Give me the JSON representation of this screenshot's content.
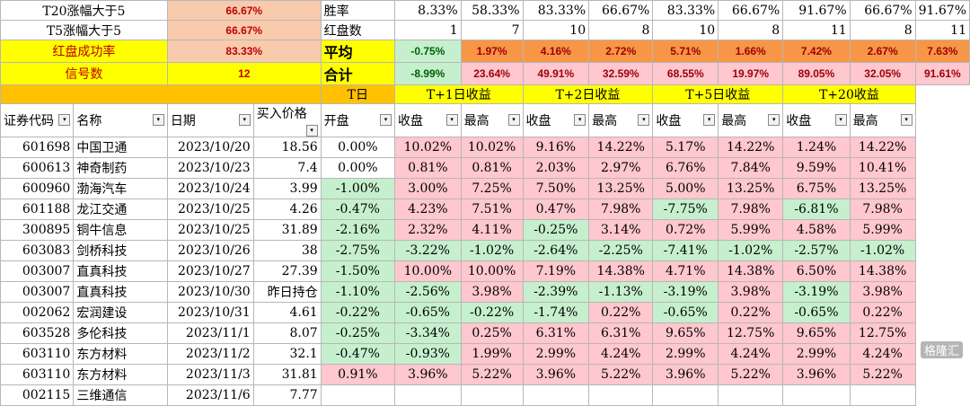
{
  "summary": {
    "row1": {
      "label": "T20涨幅大于5",
      "value": "66.67%",
      "metric": "胜率",
      "vals": [
        "8.33%",
        "58.33%",
        "83.33%",
        "66.67%",
        "83.33%",
        "66.67%",
        "91.67%",
        "66.67%",
        "91.67%"
      ]
    },
    "row2": {
      "label": "T5涨幅大于5",
      "value": "66.67%",
      "metric": "红盘数",
      "vals": [
        "1",
        "7",
        "10",
        "8",
        "10",
        "8",
        "11",
        "8",
        "11"
      ]
    },
    "row3": {
      "label": "红盘成功率",
      "value": "83.33%",
      "metric": "平均",
      "vals": [
        "-0.75%",
        "1.97%",
        "4.16%",
        "2.72%",
        "5.71%",
        "1.66%",
        "7.42%",
        "2.67%",
        "7.63%"
      ]
    },
    "row4": {
      "label": "信号数",
      "value": "12",
      "metric": "合计",
      "vals": [
        "-8.99%",
        "23.64%",
        "49.91%",
        "32.59%",
        "68.55%",
        "19.97%",
        "89.05%",
        "32.05%",
        "91.61%"
      ]
    }
  },
  "sections": {
    "t": "T日",
    "t1": "T+1日收益",
    "t2": "T+2日收益",
    "t5": "T+5日收益",
    "t20": "T+20收益"
  },
  "headers": [
    "证券代码",
    "名称",
    "日期",
    "买入价格",
    "开盘",
    "收盘",
    "最高",
    "收盘",
    "最高",
    "收盘",
    "最高",
    "收盘",
    "最高"
  ],
  "rows": [
    [
      "601698",
      "中国卫通",
      "2023/10/20",
      "18.56",
      "0.00%",
      "10.02%",
      "10.02%",
      "9.16%",
      "14.22%",
      "5.17%",
      "14.22%",
      "1.24%",
      "14.22%"
    ],
    [
      "600613",
      "神奇制药",
      "2023/10/23",
      "7.4",
      "0.00%",
      "0.81%",
      "0.81%",
      "2.03%",
      "2.97%",
      "6.76%",
      "7.84%",
      "9.59%",
      "10.41%"
    ],
    [
      "600960",
      "渤海汽车",
      "2023/10/24",
      "3.99",
      "-1.00%",
      "3.00%",
      "7.25%",
      "7.50%",
      "13.25%",
      "5.00%",
      "13.25%",
      "6.75%",
      "13.25%"
    ],
    [
      "601188",
      "龙江交通",
      "2023/10/25",
      "4.26",
      "-0.47%",
      "4.23%",
      "7.51%",
      "0.47%",
      "7.98%",
      "-7.75%",
      "7.98%",
      "-6.81%",
      "7.98%"
    ],
    [
      "300895",
      "铜牛信息",
      "2023/10/25",
      "31.89",
      "-2.16%",
      "2.32%",
      "4.11%",
      "-0.25%",
      "3.14%",
      "0.72%",
      "5.99%",
      "4.58%",
      "5.99%"
    ],
    [
      "603083",
      "剑桥科技",
      "2023/10/26",
      "38",
      "-2.75%",
      "-3.22%",
      "-1.02%",
      "-2.64%",
      "-2.25%",
      "-7.41%",
      "-1.02%",
      "-2.57%",
      "-1.02%"
    ],
    [
      "003007",
      "直真科技",
      "2023/10/27",
      "27.39",
      "-1.50%",
      "10.00%",
      "10.00%",
      "7.19%",
      "14.38%",
      "4.71%",
      "14.38%",
      "6.50%",
      "14.38%"
    ],
    [
      "003007",
      "直真科技",
      "2023/10/30",
      "昨日持仓",
      "-1.10%",
      "-2.56%",
      "3.98%",
      "-2.39%",
      "-1.13%",
      "-3.19%",
      "3.98%",
      "-3.19%",
      "3.98%"
    ],
    [
      "002062",
      "宏润建设",
      "2023/10/31",
      "4.61",
      "-0.22%",
      "-0.65%",
      "-0.22%",
      "-1.74%",
      "0.22%",
      "-0.65%",
      "0.22%",
      "-0.65%",
      "0.22%"
    ],
    [
      "603528",
      "多伦科技",
      "2023/11/1",
      "8.07",
      "-0.25%",
      "-3.34%",
      "0.25%",
      "6.31%",
      "6.31%",
      "9.65%",
      "12.75%",
      "9.65%",
      "12.75%"
    ],
    [
      "603110",
      "东方材料",
      "2023/11/2",
      "32.1",
      "-0.47%",
      "-0.93%",
      "1.99%",
      "2.99%",
      "4.24%",
      "2.99%",
      "4.24%",
      "2.99%",
      "4.24%"
    ],
    [
      "603110",
      "东方材料",
      "2023/11/3",
      "31.81",
      "0.91%",
      "3.96%",
      "5.22%",
      "3.96%",
      "5.22%",
      "3.96%",
      "5.22%",
      "3.96%",
      "5.22%"
    ],
    [
      "002115",
      "三维通信",
      "2023/11/6",
      "7.77",
      "",
      "",
      "",
      "",
      "",
      "",
      "",
      "",
      ""
    ]
  ],
  "watermark": "格隆汇",
  "colors": {
    "positive_bg": "#ffc7ce",
    "negative_bg": "#c6efce",
    "orange": "#f79646",
    "yellow": "#ffff00",
    "pink": "#f8cbad",
    "gold": "#ffc000"
  }
}
